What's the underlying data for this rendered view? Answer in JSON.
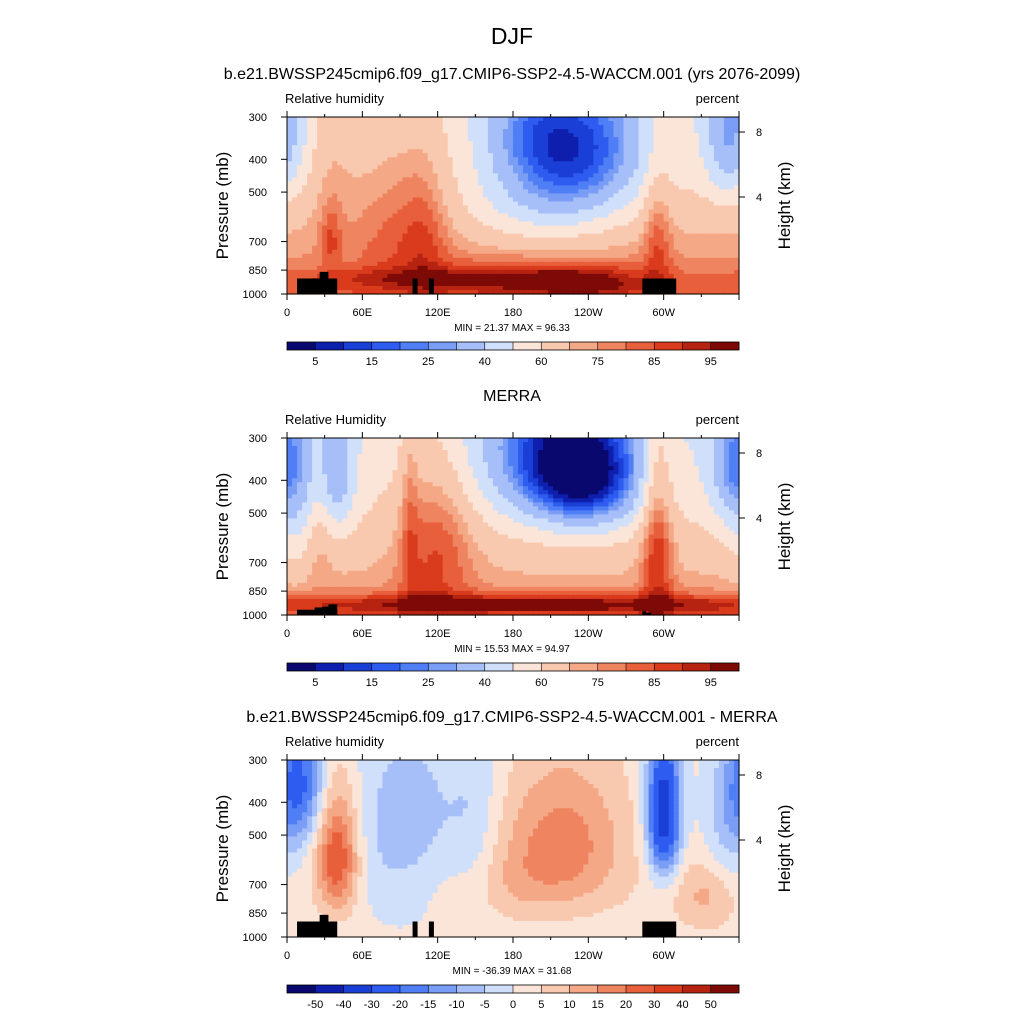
{
  "figure": {
    "title": "DJF"
  },
  "palette": {
    "rh": [
      "#08086e",
      "#0e1fae",
      "#1a3fd6",
      "#2f5cf0",
      "#4f7ef5",
      "#7a9df6",
      "#a6bff8",
      "#d0e0fa",
      "#fbe5d8",
      "#f8c9ae",
      "#f5a886",
      "#ef8560",
      "#e85f3b",
      "#d93b1c",
      "#b62310",
      "#7d0a06"
    ],
    "diff": [
      "#08086e",
      "#0e1fae",
      "#1a3fd6",
      "#2f5cf0",
      "#4f7ef5",
      "#7a9df6",
      "#a6bff8",
      "#d0e0fa",
      "#fbe5d8",
      "#f8c9ae",
      "#f5a886",
      "#ef8560",
      "#e85f3b",
      "#d93b1c",
      "#b62310",
      "#7d0a06"
    ],
    "land_mask": "#000000"
  },
  "chart_data": [
    {
      "type": "heatmap",
      "title": "b.e21.BWSSP245cmip6.f09_g17.CMIP6-SSP2-4.5-WACCM.001 (yrs 2076-2099)",
      "left_label": "Relative humidity",
      "right_label": "percent",
      "ylabel": "Pressure (mb)",
      "ylabel_right": "Height (km)",
      "x_ticks": [
        "0",
        "60E",
        "120E",
        "180",
        "120W",
        "60W"
      ],
      "y_ticks": [
        "300",
        "400",
        "500",
        "700",
        "850",
        "1000"
      ],
      "y_ticks_right": [
        "8",
        "4"
      ],
      "stats": "MIN =  21.37  MAX =  96.33",
      "min": 21.37,
      "max": 96.33,
      "colorbar_labels": [
        "5",
        "15",
        "25",
        "40",
        "60",
        "75",
        "85",
        "95"
      ],
      "field": "rh_model"
    },
    {
      "type": "heatmap",
      "title": "MERRA",
      "left_label": "Relative Humidity",
      "right_label": "percent",
      "ylabel": "Pressure (mb)",
      "ylabel_right": "Height (km)",
      "x_ticks": [
        "0",
        "60E",
        "120E",
        "180",
        "120W",
        "60W"
      ],
      "y_ticks": [
        "300",
        "400",
        "500",
        "700",
        "850",
        "1000"
      ],
      "y_ticks_right": [
        "8",
        "4"
      ],
      "stats": "MIN =  15.53  MAX =  94.97",
      "min": 15.53,
      "max": 94.97,
      "colorbar_labels": [
        "5",
        "15",
        "25",
        "40",
        "60",
        "75",
        "85",
        "95"
      ],
      "field": "rh_obs"
    },
    {
      "type": "heatmap",
      "title": "b.e21.BWSSP245cmip6.f09_g17.CMIP6-SSP2-4.5-WACCM.001 - MERRA",
      "left_label": "Relative humidity",
      "right_label": "percent",
      "ylabel": "Pressure (mb)",
      "ylabel_right": "Height (km)",
      "x_ticks": [
        "0",
        "60E",
        "120E",
        "180",
        "120W",
        "60W"
      ],
      "y_ticks": [
        "300",
        "400",
        "500",
        "700",
        "850",
        "1000"
      ],
      "y_ticks_right": [
        "8",
        "4"
      ],
      "stats": "MIN = -36.39  MAX =  31.68",
      "min": -36.39,
      "max": 31.68,
      "colorbar_labels": [
        "-50",
        "-40",
        "-30",
        "-20",
        "-15",
        "-10",
        "-5",
        "0",
        "5",
        "10",
        "15",
        "20",
        "30",
        "40",
        "50"
      ],
      "field": "rh_diff"
    }
  ]
}
